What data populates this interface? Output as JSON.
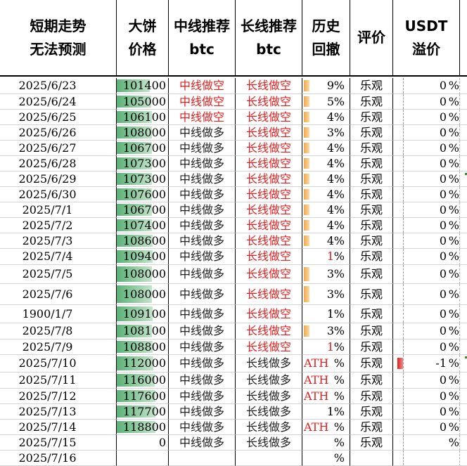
{
  "headers": {
    "col0": [
      "短期走势",
      "无法预测"
    ],
    "col1": [
      "大饼",
      "价格"
    ],
    "col2": [
      "中线推荐",
      "btc"
    ],
    "col3": [
      "长线推荐",
      "btc"
    ],
    "col4": [
      "历史",
      "回撤"
    ],
    "col5": [
      "评价"
    ],
    "col6": [
      "USDT",
      "溢价"
    ]
  },
  "bar_max_price": 120000,
  "colors": {
    "red_text": "#e02020",
    "green_bar": "#5bb176",
    "orange_bar": "#f2a94b"
  },
  "rows": [
    {
      "date": "2025/6/23",
      "price": "101400",
      "price_value": 101400,
      "mid": "中线做空",
      "mid_red": true,
      "long": "长线做空",
      "long_red": true,
      "dd": "9",
      "dd_red": false,
      "dd_bar": true,
      "ath": false,
      "eval": "乐观",
      "usdt": "0",
      "usdt_bar": false
    },
    {
      "date": "2025/6/24",
      "price": "105000",
      "price_value": 105000,
      "mid": "中线做空",
      "mid_red": true,
      "long": "长线做空",
      "long_red": true,
      "dd": "5",
      "dd_red": false,
      "dd_bar": true,
      "ath": false,
      "eval": "乐观",
      "usdt": "0",
      "usdt_bar": false
    },
    {
      "date": "2025/6/25",
      "price": "106100",
      "price_value": 106100,
      "mid": "中线做空",
      "mid_red": true,
      "long": "长线做空",
      "long_red": true,
      "dd": "4",
      "dd_red": false,
      "dd_bar": true,
      "ath": false,
      "eval": "乐观",
      "usdt": "0",
      "usdt_bar": false
    },
    {
      "date": "2025/6/26",
      "price": "108000",
      "price_value": 108000,
      "mid": "中线做多",
      "mid_red": false,
      "long": "长线做空",
      "long_red": true,
      "dd": "3",
      "dd_red": false,
      "dd_bar": true,
      "ath": false,
      "eval": "乐观",
      "usdt": "0",
      "usdt_bar": false
    },
    {
      "date": "2025/6/27",
      "price": "106700",
      "price_value": 106700,
      "mid": "中线做多",
      "mid_red": false,
      "long": "长线做空",
      "long_red": true,
      "dd": "4",
      "dd_red": false,
      "dd_bar": true,
      "ath": false,
      "eval": "乐观",
      "usdt": "0",
      "usdt_bar": false
    },
    {
      "date": "2025/6/28",
      "price": "107300",
      "price_value": 107300,
      "mid": "中线做多",
      "mid_red": false,
      "long": "长线做空",
      "long_red": true,
      "dd": "4",
      "dd_red": false,
      "dd_bar": true,
      "ath": false,
      "eval": "乐观",
      "usdt": "0",
      "usdt_bar": false
    },
    {
      "date": "2025/6/29",
      "price": "107300",
      "price_value": 107300,
      "mid": "中线做多",
      "mid_red": false,
      "long": "长线做空",
      "long_red": true,
      "dd": "4",
      "dd_red": false,
      "dd_bar": true,
      "ath": false,
      "eval": "乐观",
      "usdt": "0",
      "usdt_bar": false
    },
    {
      "date": "2025/6/30",
      "price": "107600",
      "price_value": 107600,
      "mid": "中线做多",
      "mid_red": false,
      "long": "长线做空",
      "long_red": true,
      "dd": "4",
      "dd_red": false,
      "dd_bar": true,
      "ath": false,
      "eval": "乐观",
      "usdt": "0",
      "usdt_bar": false
    },
    {
      "date": "2025/7/1",
      "price": "106700",
      "price_value": 106700,
      "mid": "中线做多",
      "mid_red": false,
      "long": "长线做空",
      "long_red": true,
      "dd": "4",
      "dd_red": false,
      "dd_bar": true,
      "ath": false,
      "eval": "乐观",
      "usdt": "0",
      "usdt_bar": false
    },
    {
      "date": "2025/7/2",
      "price": "107400",
      "price_value": 107400,
      "mid": "中线做多",
      "mid_red": false,
      "long": "长线做空",
      "long_red": true,
      "dd": "4",
      "dd_red": false,
      "dd_bar": true,
      "ath": false,
      "eval": "乐观",
      "usdt": "0",
      "usdt_bar": false
    },
    {
      "date": "2025/7/3",
      "price": "108600",
      "price_value": 108600,
      "mid": "中线做多",
      "mid_red": false,
      "long": "长线做空",
      "long_red": true,
      "dd": "4",
      "dd_red": false,
      "dd_bar": true,
      "ath": false,
      "eval": "乐观",
      "usdt": "0",
      "usdt_bar": false
    },
    {
      "date": "2025/7/4",
      "price": "109400",
      "price_value": 109400,
      "mid": "中线做多",
      "mid_red": false,
      "long": "长线做空",
      "long_red": true,
      "dd": "1",
      "dd_red": true,
      "dd_bar": false,
      "ath": false,
      "eval": "乐观",
      "usdt": "0",
      "usdt_bar": false
    },
    {
      "date": "2025/7/5",
      "price": "108000",
      "price_value": 108000,
      "mid": "中线做多",
      "mid_red": false,
      "long": "长线做空",
      "long_red": true,
      "dd": "3",
      "dd_red": false,
      "dd_bar": true,
      "ath": false,
      "eval": "乐观",
      "usdt": "0",
      "usdt_bar": false
    },
    {
      "date": "2025/7/6",
      "price": "108000",
      "price_value": 108000,
      "mid": "中线做多",
      "mid_red": false,
      "long": "长线做空",
      "long_red": true,
      "dd": "3",
      "dd_red": false,
      "dd_bar": true,
      "ath": false,
      "eval": "乐观",
      "usdt": "0",
      "usdt_bar": false
    },
    {
      "date": "1900/1/7",
      "price": "109100",
      "price_value": 109100,
      "mid": "中线做多",
      "mid_red": false,
      "long": "长线做空",
      "long_red": true,
      "dd": "1",
      "dd_red": false,
      "dd_bar": false,
      "ath": false,
      "eval": "乐观",
      "usdt": "0",
      "usdt_bar": false
    },
    {
      "date": "2025/7/8",
      "price": "108100",
      "price_value": 108100,
      "mid": "中线做多",
      "mid_red": false,
      "long": "长线做空",
      "long_red": true,
      "dd": "3",
      "dd_red": false,
      "dd_bar": true,
      "ath": false,
      "eval": "乐观",
      "usdt": "0",
      "usdt_bar": false
    },
    {
      "date": "2025/7/9",
      "price": "108800",
      "price_value": 108800,
      "mid": "中线做多",
      "mid_red": false,
      "long": "长线做空",
      "long_red": true,
      "dd": "1",
      "dd_red": true,
      "dd_bar": false,
      "ath": false,
      "eval": "乐观",
      "usdt": "0",
      "usdt_bar": false
    },
    {
      "date": "2025/7/10",
      "price": "112000",
      "price_value": 112000,
      "mid": "中线做多",
      "mid_red": false,
      "long": "长线做多",
      "long_red": false,
      "dd": "",
      "dd_red": false,
      "dd_bar": false,
      "ath": true,
      "eval": "乐观",
      "usdt": "-1",
      "usdt_bar": true
    },
    {
      "date": "2025/7/11",
      "price": "116000",
      "price_value": 116000,
      "mid": "中线做多",
      "mid_red": false,
      "long": "长线做多",
      "long_red": false,
      "dd": "",
      "dd_red": false,
      "dd_bar": false,
      "ath": true,
      "eval": "乐观",
      "usdt": "0",
      "usdt_bar": false
    },
    {
      "date": "2025/7/12",
      "price": "117600",
      "price_value": 117600,
      "mid": "中线做多",
      "mid_red": false,
      "long": "长线做多",
      "long_red": false,
      "dd": "",
      "dd_red": false,
      "dd_bar": false,
      "ath": true,
      "eval": "乐观",
      "usdt": "0",
      "usdt_bar": false
    },
    {
      "date": "2025/7/13",
      "price": "117700",
      "price_value": 117700,
      "mid": "中线做多",
      "mid_red": false,
      "long": "长线做多",
      "long_red": false,
      "dd": "1",
      "dd_red": false,
      "dd_bar": false,
      "ath": false,
      "eval": "乐观",
      "usdt": "0",
      "usdt_bar": false
    },
    {
      "date": "2025/7/14",
      "price": "118800",
      "price_value": 118800,
      "mid": "中线做多",
      "mid_red": false,
      "long": "长线做多",
      "long_red": false,
      "dd": "",
      "dd_red": false,
      "dd_bar": false,
      "ath": true,
      "eval": "乐观",
      "usdt": "0",
      "usdt_bar": false
    },
    {
      "date": "2025/7/15",
      "price": "0",
      "price_value": 0,
      "mid": "中线做多",
      "mid_red": false,
      "long": "长线做多",
      "long_red": false,
      "dd": "",
      "dd_red": false,
      "dd_bar": false,
      "ath": false,
      "eval": "乐观",
      "usdt": "",
      "usdt_bar": false
    },
    {
      "date": "2025/7/16",
      "price": "",
      "price_value": 0,
      "mid": "",
      "mid_red": false,
      "long": "",
      "long_red": false,
      "dd": "",
      "dd_red": false,
      "dd_bar": false,
      "ath": false,
      "eval": "",
      "usdt": "",
      "usdt_bar": false
    }
  ],
  "labels": {
    "pct": "%",
    "ath": "ATH"
  }
}
